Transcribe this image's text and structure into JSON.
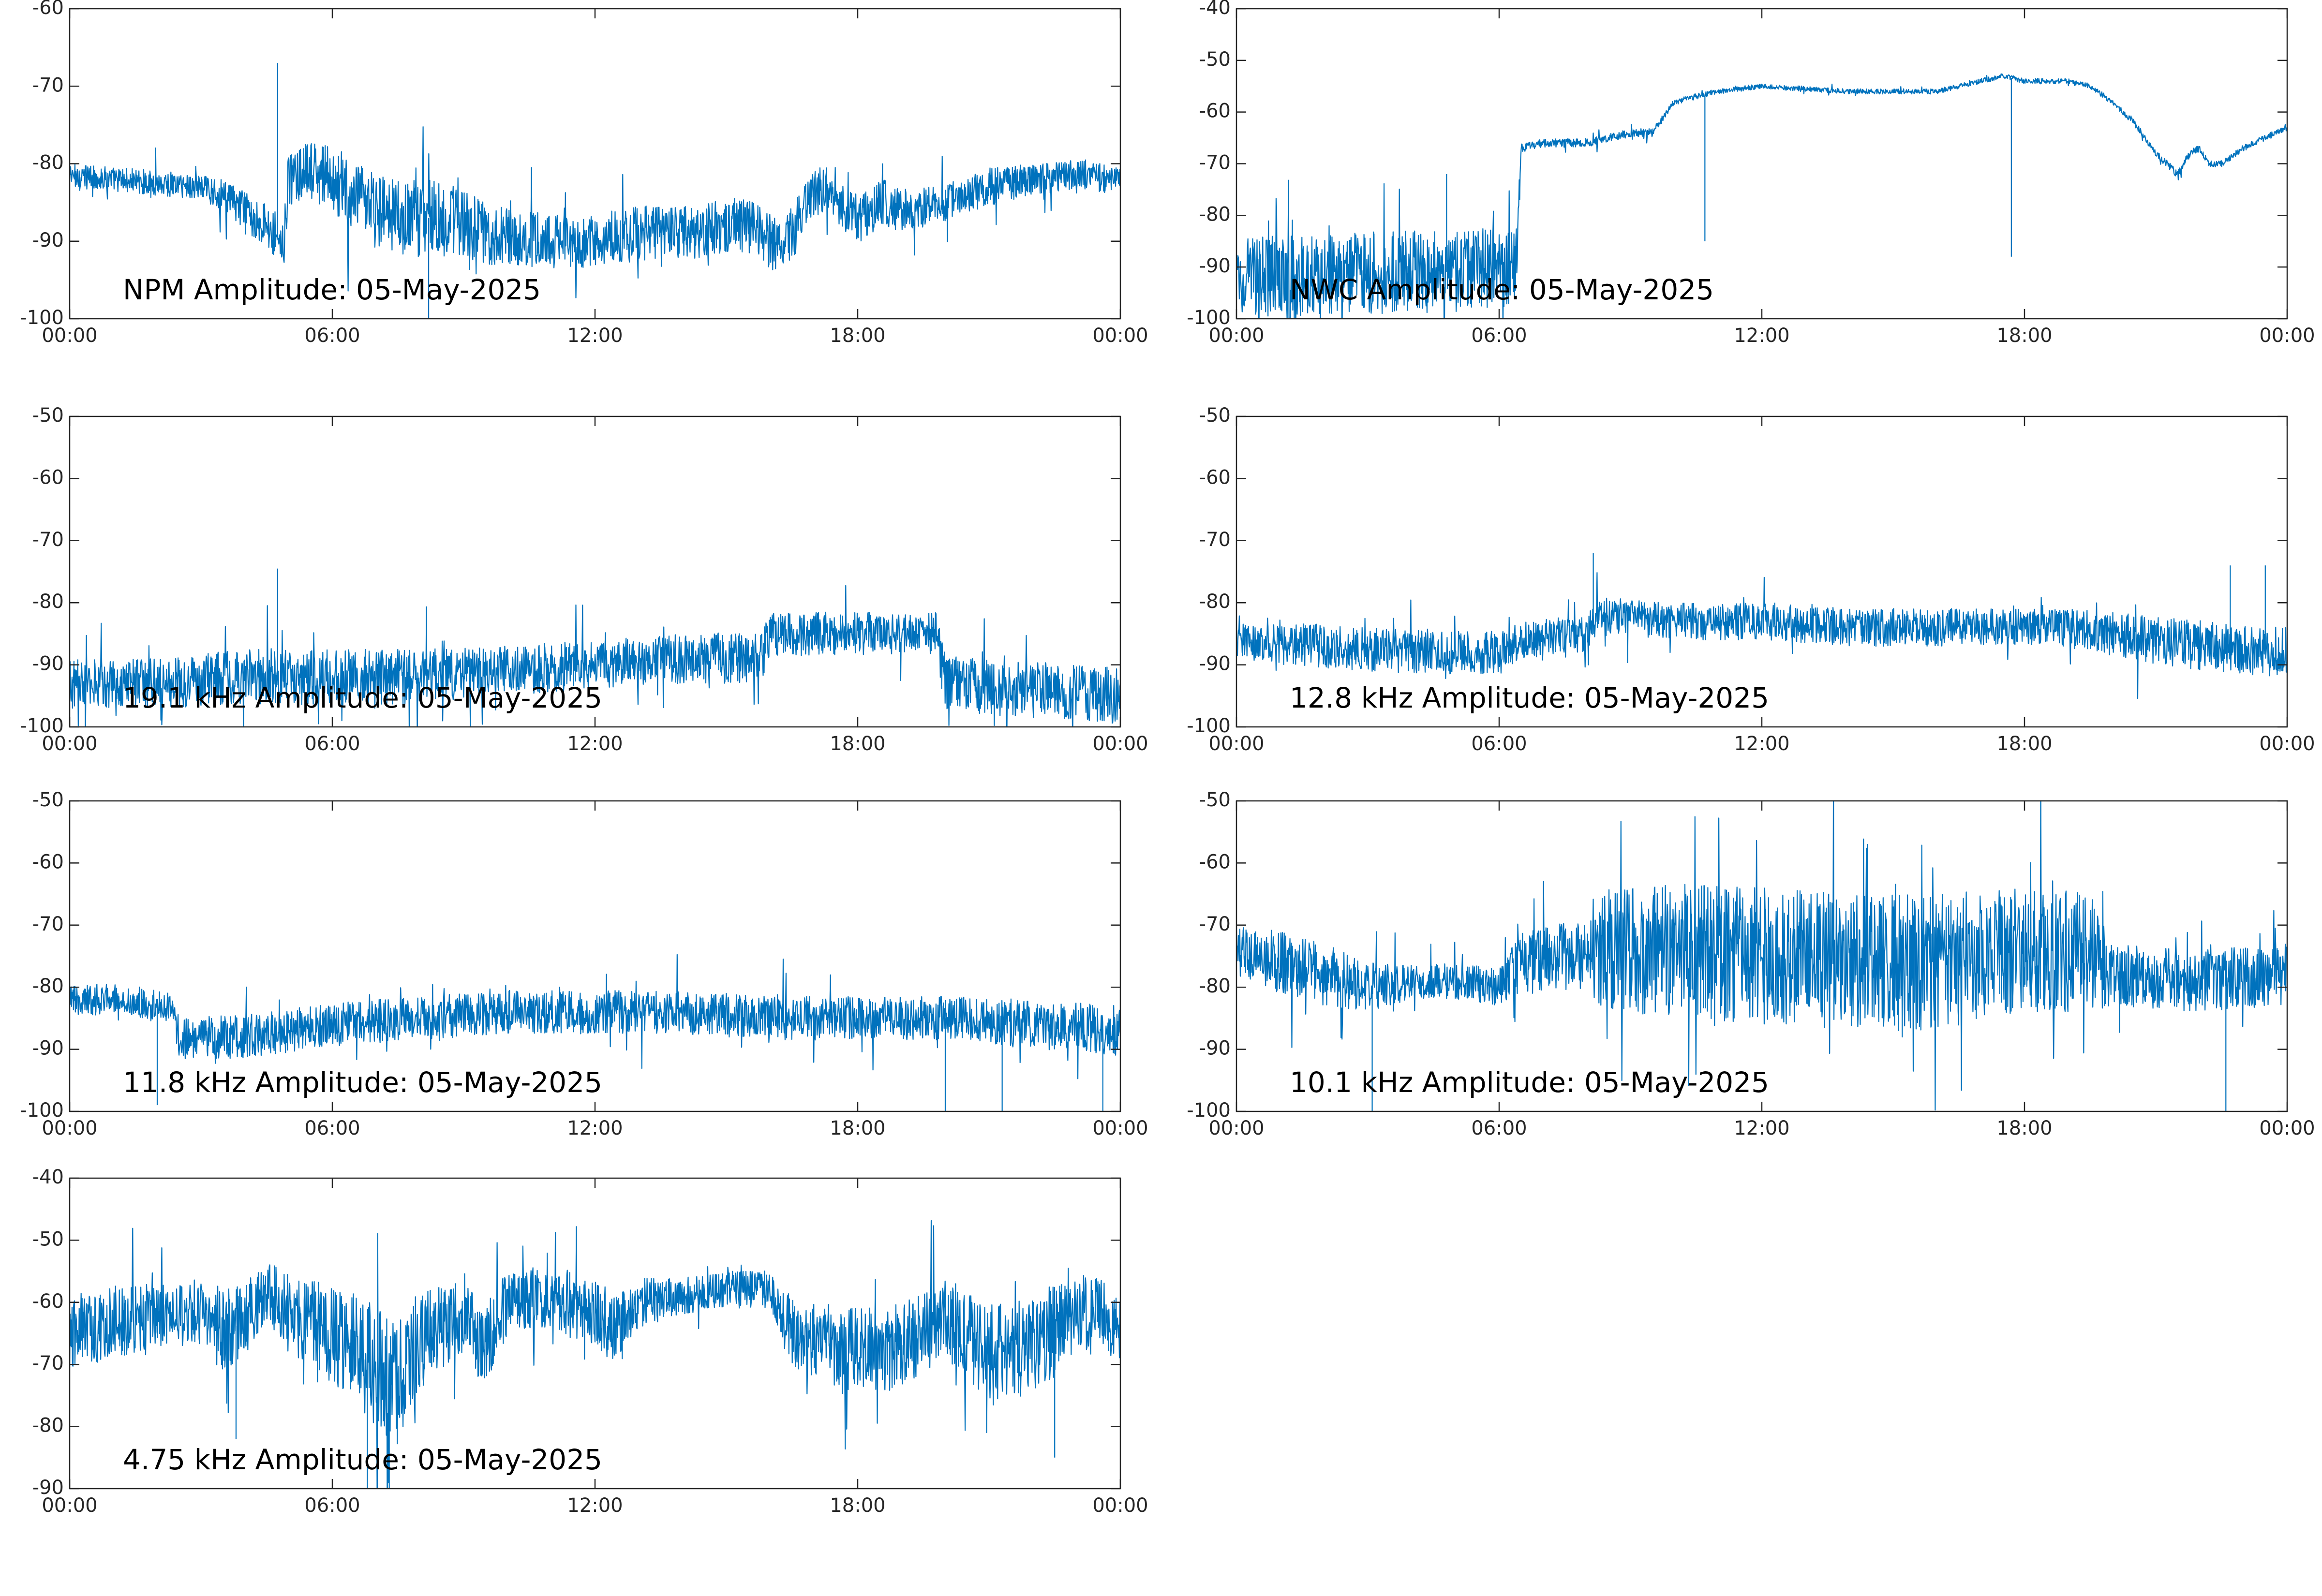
{
  "style": {
    "series_color": "#0072BD",
    "axis_color": "#262626",
    "background": "#ffffff"
  },
  "chart_data": [
    {
      "type": "line",
      "title": "NPM Amplitude: 05-May-2025",
      "xlabel": "",
      "ylabel": "",
      "x_ticks": [
        "00:00",
        "06:00",
        "12:00",
        "18:00",
        "00:00"
      ],
      "xlim": [
        0,
        24
      ],
      "ylim": [
        -100,
        -60
      ],
      "y_ticks": [
        -60,
        -70,
        -80,
        -90,
        -100
      ],
      "grid": false,
      "series": [
        {
          "x": [
            0,
            1,
            2,
            3,
            3.5,
            4,
            4.5,
            4.9,
            5.0,
            5.5,
            6.0,
            6.5,
            7.5,
            8.5,
            9.5,
            11,
            12,
            13,
            14,
            15,
            15.5,
            16,
            16.3,
            16.6,
            16.9,
            17.3,
            17.7,
            18,
            18.3,
            18.6,
            19,
            20,
            21,
            22,
            23,
            24
          ],
          "y": [
            -81.5,
            -82,
            -82.5,
            -83,
            -84,
            -86,
            -88,
            -90,
            -82,
            -81,
            -82,
            -85,
            -87,
            -87,
            -89,
            -90,
            -90,
            -89,
            -89,
            -88,
            -88,
            -90,
            -91,
            -88,
            -84,
            -83,
            -86,
            -87,
            -86,
            -85,
            -86,
            -85,
            -83,
            -82,
            -81.5,
            -82
          ],
          "spread": [
            1.6,
            1.6,
            1.6,
            1.8,
            2,
            2.5,
            3,
            3.5,
            3.5,
            4,
            4,
            5,
            5,
            5,
            4,
            3.5,
            3.5,
            3.5,
            3.5,
            3.5,
            3.5,
            3.5,
            3.5,
            3.5,
            3,
            3,
            3,
            3,
            3,
            3,
            3,
            2.5,
            2.5,
            2,
            2,
            1.6
          ],
          "spikes": [
            [
              4.75,
              -67
            ],
            [
              8.2,
              -100
            ]
          ]
        }
      ]
    },
    {
      "type": "line",
      "title": "NWC Amplitude: 05-May-2025",
      "xlabel": "",
      "ylabel": "",
      "x_ticks": [
        "00:00",
        "06:00",
        "12:00",
        "18:00",
        "00:00"
      ],
      "xlim": [
        0,
        24
      ],
      "ylim": [
        -100,
        -40
      ],
      "y_ticks": [
        -40,
        -50,
        -60,
        -70,
        -80,
        -90,
        -100
      ],
      "grid": false,
      "series": [
        {
          "x": [
            0,
            1,
            2,
            3,
            4,
            5,
            6,
            6.4,
            6.5,
            7,
            8,
            8.5,
            9,
            9.5,
            10,
            10.5,
            11,
            12,
            13,
            14,
            15,
            16,
            17,
            17.5,
            18,
            19,
            19.5,
            20,
            20.5,
            21,
            21.5,
            21.8,
            22,
            22.2,
            22.5,
            23,
            24
          ],
          "y": [
            -92,
            -92,
            -92,
            -91,
            -91,
            -91,
            -90,
            -90,
            -67,
            -66,
            -66,
            -65,
            -64,
            -64,
            -58,
            -57,
            -56,
            -55,
            -55.5,
            -56,
            -56,
            -56,
            -54,
            -53,
            -54,
            -54,
            -55,
            -58,
            -62,
            -68,
            -72,
            -68,
            -67,
            -70,
            -70,
            -67,
            -63
          ],
          "spread": [
            8,
            8,
            8,
            8,
            8,
            8,
            8,
            8,
            0.8,
            0.8,
            0.8,
            0.8,
            0.8,
            0.8,
            0.6,
            0.6,
            0.5,
            0.5,
            0.5,
            0.5,
            0.5,
            0.5,
            0.5,
            0.5,
            0.5,
            0.5,
            0.5,
            0.5,
            0.6,
            0.6,
            0.8,
            0.8,
            0.6,
            0.6,
            0.6,
            0.6,
            0.6
          ],
          "spikes": [
            [
              4.8,
              -72
            ],
            [
              10.7,
              -85
            ],
            [
              17.7,
              -88
            ]
          ]
        }
      ]
    },
    {
      "type": "line",
      "title": "19.1 kHz Amplitude: 05-May-2025",
      "xlabel": "",
      "ylabel": "",
      "x_ticks": [
        "00:00",
        "06:00",
        "12:00",
        "18:00",
        "00:00"
      ],
      "xlim": [
        0,
        24
      ],
      "ylim": [
        -100,
        -50
      ],
      "y_ticks": [
        -50,
        -60,
        -70,
        -80,
        -90,
        -100
      ],
      "grid": false,
      "series": [
        {
          "x": [
            0,
            2,
            4,
            6,
            8,
            10,
            12,
            14,
            15.8,
            16,
            18,
            19.8,
            20,
            22,
            24
          ],
          "y": [
            -93,
            -93,
            -92,
            -92,
            -92,
            -91,
            -90,
            -89,
            -89,
            -85,
            -85,
            -85,
            -93,
            -94,
            -95
          ],
          "spread": [
            4,
            4,
            4.5,
            4.5,
            4.5,
            4,
            4,
            4,
            4,
            3.5,
            3.5,
            3.5,
            4.5,
            4.5,
            4.5
          ],
          "spikes": [
            [
              4.75,
              -74.5
            ]
          ]
        }
      ]
    },
    {
      "type": "line",
      "title": "12.8 kHz Amplitude: 05-May-2025",
      "xlabel": "",
      "ylabel": "",
      "x_ticks": [
        "00:00",
        "06:00",
        "12:00",
        "18:00",
        "00:00"
      ],
      "xlim": [
        0,
        24
      ],
      "ylim": [
        -100,
        -50
      ],
      "y_ticks": [
        -50,
        -60,
        -70,
        -80,
        -90,
        -100
      ],
      "grid": false,
      "series": [
        {
          "x": [
            0,
            2,
            4,
            6,
            6.5,
            8,
            8.3,
            10,
            12,
            14,
            16,
            18,
            19,
            20,
            22,
            24
          ],
          "y": [
            -86,
            -87,
            -88,
            -88,
            -86,
            -85,
            -82,
            -83,
            -83,
            -84,
            -84,
            -84,
            -84,
            -85,
            -87,
            -88
          ],
          "spread": [
            3,
            3.5,
            3.5,
            3.5,
            3,
            3,
            3,
            3,
            3,
            3,
            3,
            3,
            3,
            3.5,
            4,
            4
          ],
          "spikes": [
            [
              8.15,
              -72
            ],
            [
              22.7,
              -74
            ],
            [
              23.5,
              -74
            ]
          ]
        }
      ]
    },
    {
      "type": "line",
      "title": "11.8 kHz Amplitude: 05-May-2025",
      "xlabel": "",
      "ylabel": "",
      "x_ticks": [
        "00:00",
        "06:00",
        "12:00",
        "18:00",
        "00:00"
      ],
      "xlim": [
        0,
        24
      ],
      "ylim": [
        -100,
        -50
      ],
      "y_ticks": [
        -50,
        -60,
        -70,
        -80,
        -90,
        -100
      ],
      "grid": false,
      "series": [
        {
          "x": [
            0,
            1,
            2.3,
            2.5,
            4,
            6,
            8,
            10,
            12,
            14,
            16,
            18,
            20,
            22,
            24
          ],
          "y": [
            -82,
            -82,
            -83,
            -88,
            -88,
            -86,
            -85,
            -84,
            -84,
            -84,
            -85,
            -85,
            -85,
            -86,
            -87
          ],
          "spread": [
            2.5,
            2.5,
            2.5,
            3.5,
            3.5,
            3.5,
            3.5,
            3.5,
            3.5,
            3.5,
            3.5,
            3.5,
            3.5,
            4,
            4
          ],
          "spikes": [
            [
              20,
              -100
            ],
            [
              21.3,
              -100
            ],
            [
              23.6,
              -100
            ],
            [
              2,
              -99
            ]
          ]
        }
      ]
    },
    {
      "type": "line",
      "title": "10.1 kHz Amplitude: 05-May-2025",
      "xlabel": "",
      "ylabel": "",
      "x_ticks": [
        "00:00",
        "06:00",
        "12:00",
        "18:00",
        "00:00"
      ],
      "xlim": [
        0,
        24
      ],
      "ylim": [
        -100,
        -50
      ],
      "y_ticks": [
        -50,
        -60,
        -70,
        -80,
        -90,
        -100
      ],
      "grid": false,
      "series": [
        {
          "x": [
            0,
            1,
            2,
            3,
            4,
            5,
            6,
            6.5,
            8,
            8.5,
            10,
            12,
            14,
            16,
            18,
            19.5,
            20,
            22,
            24
          ],
          "y": [
            -74,
            -76,
            -78,
            -80,
            -79,
            -79,
            -80,
            -76,
            -75,
            -74,
            -74,
            -75,
            -76,
            -76,
            -74,
            -74,
            -78,
            -79,
            -78
          ],
          "spread": [
            4,
            5,
            5,
            4,
            3,
            3,
            3,
            5,
            6,
            10,
            11,
            11,
            11,
            11,
            10,
            10,
            5,
            5,
            5
          ],
          "spikes": [
            [
              3.1,
              -100
            ],
            [
              22.6,
              -100
            ]
          ]
        }
      ]
    },
    {
      "type": "line",
      "title": "4.75 kHz Amplitude: 05-May-2025",
      "xlabel": "",
      "ylabel": "",
      "x_ticks": [
        "00:00",
        "06:00",
        "12:00",
        "18:00",
        "00:00"
      ],
      "xlim": [
        0,
        24
      ],
      "ylim": [
        -90,
        -40
      ],
      "y_ticks": [
        -40,
        -50,
        -60,
        -70,
        -80,
        -90
      ],
      "grid": false,
      "series": [
        {
          "x": [
            0,
            1,
            2,
            3,
            3.5,
            4,
            4.5,
            5,
            6,
            7,
            7.5,
            8,
            9,
            9.5,
            10,
            11,
            12,
            12.5,
            13,
            14,
            15,
            16,
            16.5,
            17,
            18,
            19,
            20,
            21,
            22,
            23,
            24
          ],
          "y": [
            -65,
            -63,
            -62,
            -62,
            -65,
            -63,
            -58,
            -62,
            -65,
            -70,
            -73,
            -66,
            -62,
            -67,
            -60,
            -59,
            -62,
            -65,
            -60,
            -59,
            -58,
            -58,
            -65,
            -66,
            -68,
            -67,
            -63,
            -68,
            -67,
            -62,
            -63
          ],
          "spread": [
            6,
            6,
            5,
            5,
            7,
            6,
            5,
            6,
            8,
            10,
            10,
            8,
            6,
            7,
            5,
            5,
            6,
            6,
            4,
            3,
            3,
            3,
            6,
            6,
            7,
            7,
            7,
            8,
            8,
            7,
            6
          ],
          "spikes": [
            [
              3.8,
              -82
            ],
            [
              7.3,
              -90
            ],
            [
              6.8,
              -90
            ],
            [
              22.5,
              -85
            ]
          ]
        }
      ]
    }
  ]
}
